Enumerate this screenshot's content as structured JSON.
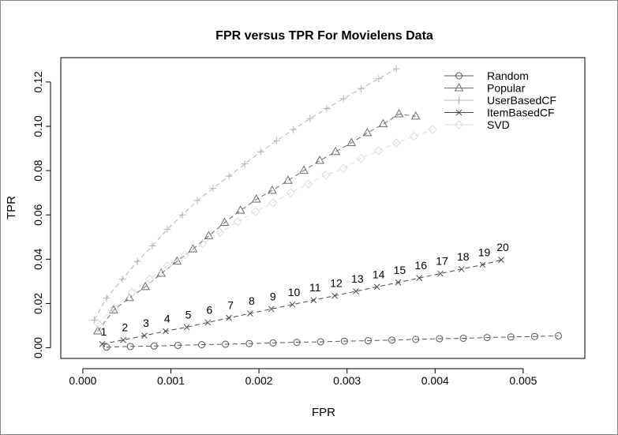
{
  "chart_data": {
    "type": "line",
    "title": "FPR versus TPR For Movielens Data",
    "xlabel": "FPR",
    "ylabel": "TPR",
    "xlim": [
      -0.00025,
      0.0057
    ],
    "ylim": [
      -0.0048,
      0.131
    ],
    "xticks": [
      "0.000",
      "0.001",
      "0.002",
      "0.003",
      "0.004",
      "0.005"
    ],
    "yticks": [
      "0.00",
      "0.02",
      "0.04",
      "0.06",
      "0.08",
      "0.10",
      "0.12"
    ],
    "legend_position": "top-right",
    "grid": false,
    "series": [
      {
        "name": "Random",
        "color": "#555555",
        "marker": "circle",
        "x": [
          0.00027,
          0.00054,
          0.00081,
          0.00108,
          0.00135,
          0.00162,
          0.00189,
          0.00216,
          0.00243,
          0.0027,
          0.00297,
          0.00324,
          0.00351,
          0.00378,
          0.00405,
          0.00432,
          0.00459,
          0.00486,
          0.00513,
          0.0054
        ],
        "y": [
          0.0003,
          0.0006,
          0.0008,
          0.0011,
          0.0014,
          0.0016,
          0.0019,
          0.0022,
          0.0025,
          0.0027,
          0.003,
          0.0032,
          0.0035,
          0.0038,
          0.0041,
          0.0043,
          0.0046,
          0.0049,
          0.0051,
          0.0054
        ]
      },
      {
        "name": "Popular",
        "color": "#6e6e6e",
        "marker": "triangle",
        "x": [
          0.00017,
          0.00035,
          0.00053,
          0.00071,
          0.00089,
          0.00107,
          0.00125,
          0.00143,
          0.00161,
          0.00179,
          0.00197,
          0.00215,
          0.00233,
          0.00251,
          0.00269,
          0.00287,
          0.00305,
          0.00323,
          0.00341,
          0.00359,
          0.00378
        ],
        "y": [
          0.0075,
          0.017,
          0.0225,
          0.0275,
          0.0335,
          0.039,
          0.0445,
          0.0505,
          0.0565,
          0.062,
          0.067,
          0.071,
          0.0755,
          0.08,
          0.0845,
          0.0885,
          0.0925,
          0.097,
          0.101,
          0.1055,
          0.1045
        ]
      },
      {
        "name": "UserBasedCF",
        "color": "#b4b4b4",
        "marker": "plus",
        "x": [
          0.00013,
          0.00027,
          0.00045,
          0.00062,
          0.00079,
          0.00096,
          0.00113,
          0.0013,
          0.00148,
          0.00166,
          0.00184,
          0.00202,
          0.0022,
          0.00239,
          0.00258,
          0.00277,
          0.00296,
          0.00316,
          0.00336,
          0.00356
        ],
        "y": [
          0.0125,
          0.0225,
          0.031,
          0.039,
          0.046,
          0.0535,
          0.06,
          0.0665,
          0.072,
          0.0775,
          0.083,
          0.0885,
          0.0935,
          0.0985,
          0.1035,
          0.108,
          0.1125,
          0.117,
          0.1215,
          0.126
        ]
      },
      {
        "name": "ItemBasedCF",
        "color": "#4a4a4a",
        "marker": "x",
        "x": [
          0.00022,
          0.00046,
          0.0007,
          0.00094,
          0.00118,
          0.00142,
          0.00166,
          0.0019,
          0.00214,
          0.00238,
          0.00262,
          0.00286,
          0.0031,
          0.00334,
          0.00358,
          0.00382,
          0.00406,
          0.0043,
          0.00454,
          0.00475
        ],
        "y": [
          0.0017,
          0.0035,
          0.0055,
          0.0075,
          0.0093,
          0.0114,
          0.0135,
          0.0155,
          0.0175,
          0.0195,
          0.0215,
          0.0235,
          0.0255,
          0.0275,
          0.0295,
          0.0315,
          0.0335,
          0.0355,
          0.0375,
          0.0397
        ]
      },
      {
        "name": "SVD",
        "color": "#dcdcdc",
        "marker": "diamond",
        "x": [
          0.00017,
          0.00036,
          0.00056,
          0.00076,
          0.00096,
          0.00116,
          0.00136,
          0.00156,
          0.00176,
          0.00196,
          0.00216,
          0.00236,
          0.00256,
          0.00276,
          0.00296,
          0.00316,
          0.00336,
          0.00356,
          0.00376,
          0.00397
        ],
        "y": [
          0.011,
          0.018,
          0.025,
          0.031,
          0.037,
          0.042,
          0.047,
          0.052,
          0.057,
          0.0615,
          0.0655,
          0.07,
          0.074,
          0.078,
          0.081,
          0.0855,
          0.089,
          0.0925,
          0.0955,
          0.0985
        ]
      }
    ],
    "annotations": {
      "labels": [
        "1",
        "2",
        "3",
        "4",
        "5",
        "6",
        "7",
        "8",
        "9",
        "10",
        "11",
        "12",
        "13",
        "14",
        "15",
        "16",
        "17",
        "18",
        "19",
        "20"
      ],
      "x": [
        0.00022,
        0.00046,
        0.0007,
        0.00094,
        0.00118,
        0.00142,
        0.00166,
        0.0019,
        0.00214,
        0.00238,
        0.00262,
        0.00286,
        0.0031,
        0.00334,
        0.00358,
        0.00382,
        0.00406,
        0.0043,
        0.00454,
        0.00475
      ],
      "y": [
        0.0017,
        0.0035,
        0.0055,
        0.0075,
        0.0093,
        0.0114,
        0.0135,
        0.0155,
        0.0175,
        0.0195,
        0.0215,
        0.0235,
        0.0255,
        0.0275,
        0.0295,
        0.0315,
        0.0335,
        0.0355,
        0.0375,
        0.0397
      ]
    }
  }
}
